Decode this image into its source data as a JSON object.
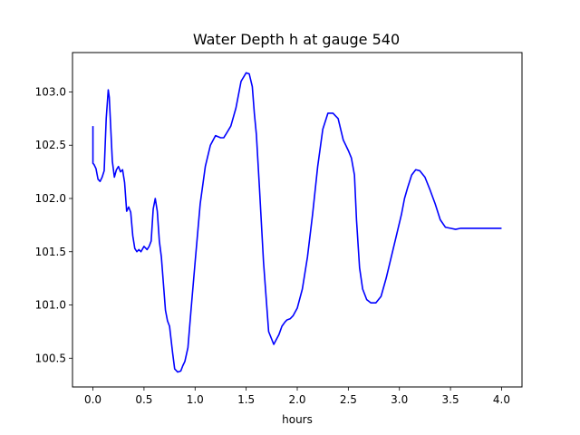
{
  "chart_data": {
    "type": "line",
    "title": "Water Depth h at gauge 540",
    "xlabel": "hours",
    "ylabel": "",
    "xlim": [
      -0.2,
      4.2
    ],
    "ylim": [
      100.23,
      103.37
    ],
    "xticks": [
      0.0,
      0.5,
      1.0,
      1.5,
      2.0,
      2.5,
      3.0,
      3.5,
      4.0
    ],
    "xtick_labels": [
      "0.0",
      "0.5",
      "1.0",
      "1.5",
      "2.0",
      "2.5",
      "3.0",
      "3.5",
      "4.0"
    ],
    "yticks": [
      100.5,
      101.0,
      101.5,
      102.0,
      102.5,
      103.0
    ],
    "ytick_labels": [
      "100.5",
      "101.0",
      "101.5",
      "102.0",
      "102.5",
      "103.0"
    ],
    "grid": false,
    "series": [
      {
        "color": "#0000ff",
        "x": [
          0.0,
          0.0,
          0.01,
          0.03,
          0.05,
          0.07,
          0.09,
          0.11,
          0.13,
          0.15,
          0.16,
          0.17,
          0.19,
          0.21,
          0.23,
          0.25,
          0.27,
          0.29,
          0.31,
          0.33,
          0.35,
          0.37,
          0.39,
          0.41,
          0.43,
          0.45,
          0.47,
          0.5,
          0.53,
          0.55,
          0.57,
          0.59,
          0.61,
          0.63,
          0.65,
          0.67,
          0.69,
          0.71,
          0.73,
          0.75,
          0.78,
          0.8,
          0.83,
          0.86,
          0.88,
          0.9,
          0.93,
          0.96,
          1.0,
          1.05,
          1.1,
          1.15,
          1.2,
          1.25,
          1.28,
          1.3,
          1.35,
          1.4,
          1.45,
          1.5,
          1.53,
          1.56,
          1.58,
          1.6,
          1.63,
          1.67,
          1.72,
          1.77,
          1.82,
          1.85,
          1.88,
          1.9,
          1.93,
          1.96,
          2.0,
          2.05,
          2.1,
          2.15,
          2.2,
          2.25,
          2.3,
          2.35,
          2.4,
          2.45,
          2.5,
          2.53,
          2.56,
          2.58,
          2.61,
          2.64,
          2.68,
          2.72,
          2.77,
          2.82,
          2.87,
          2.92,
          2.97,
          3.02,
          3.05,
          3.08,
          3.12,
          3.16,
          3.2,
          3.25,
          3.3,
          3.35,
          3.4,
          3.45,
          3.5,
          3.55,
          3.6,
          3.63,
          3.66,
          3.7,
          3.75,
          3.8,
          3.85,
          3.9,
          3.93,
          3.95,
          3.97,
          4.0
        ],
        "y": [
          102.68,
          102.33,
          102.32,
          102.28,
          102.18,
          102.16,
          102.2,
          102.26,
          102.75,
          103.02,
          102.95,
          102.75,
          102.35,
          102.2,
          102.27,
          102.3,
          102.25,
          102.27,
          102.15,
          101.88,
          101.92,
          101.87,
          101.65,
          101.53,
          101.5,
          101.52,
          101.5,
          101.55,
          101.52,
          101.55,
          101.6,
          101.9,
          102.0,
          101.88,
          101.6,
          101.45,
          101.2,
          100.95,
          100.85,
          100.8,
          100.55,
          100.4,
          100.37,
          100.38,
          100.43,
          100.47,
          100.6,
          100.95,
          101.4,
          101.95,
          102.3,
          102.5,
          102.59,
          102.57,
          102.57,
          102.6,
          102.68,
          102.85,
          103.1,
          103.18,
          103.17,
          103.05,
          102.8,
          102.6,
          102.1,
          101.4,
          100.75,
          100.63,
          100.72,
          100.8,
          100.84,
          100.86,
          100.87,
          100.9,
          100.97,
          101.15,
          101.45,
          101.85,
          102.3,
          102.65,
          102.8,
          102.8,
          102.75,
          102.55,
          102.45,
          102.38,
          102.22,
          101.8,
          101.35,
          101.15,
          101.05,
          101.02,
          101.02,
          101.08,
          101.25,
          101.45,
          101.65,
          101.85,
          102.0,
          102.1,
          102.22,
          102.27,
          102.26,
          102.2,
          102.08,
          101.95,
          101.8,
          101.73,
          101.72,
          101.71,
          101.72,
          101.72,
          101.72,
          101.72,
          101.72,
          101.72,
          101.72,
          101.72,
          101.72,
          101.72,
          101.72,
          101.72
        ]
      }
    ]
  }
}
